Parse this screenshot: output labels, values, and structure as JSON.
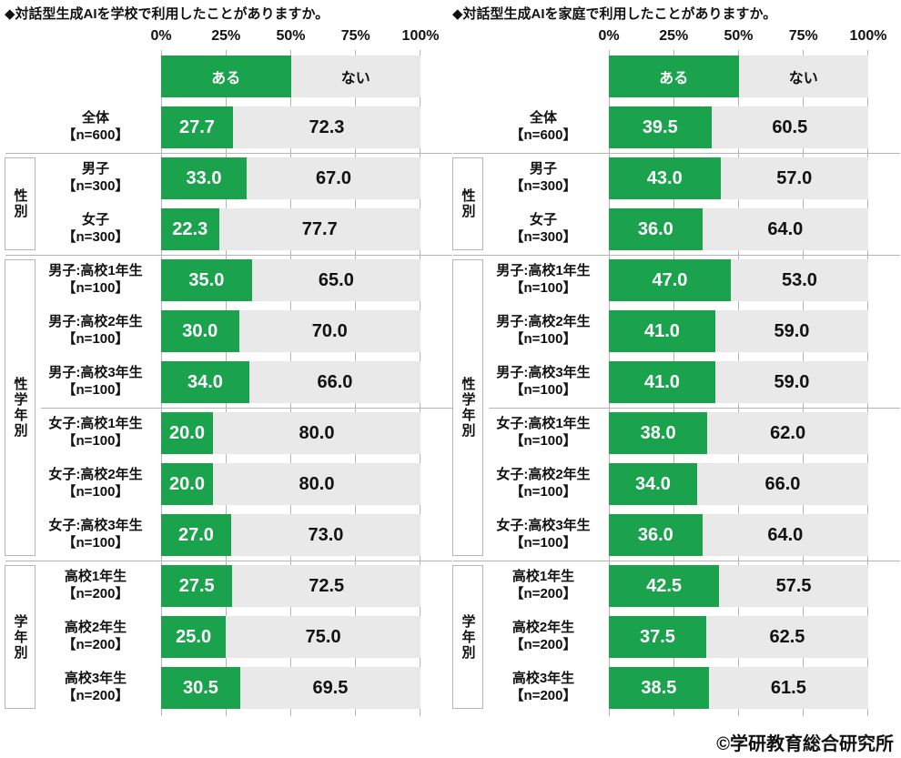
{
  "colors": {
    "green": "#1aa24d",
    "gray": "#e9e9e9",
    "line": "#b5b5b5"
  },
  "footer": {
    "credit": "©学研教育総合研究所"
  },
  "charts": [
    {
      "title": "◆対話型生成AIを学校で利用したことがありますか。",
      "axis": [
        "0%",
        "25%",
        "50%",
        "75%",
        "100%"
      ],
      "legend": {
        "yes": "ある",
        "no": "ない"
      },
      "groups": {
        "sex": "性別",
        "sex_grade": "性学年別",
        "grade": "学年別"
      },
      "rows": [
        {
          "label": "全体",
          "n": "【n=600】",
          "yes": "27.7",
          "no": "72.3"
        },
        {
          "label": "男子",
          "n": "【n=300】",
          "yes": "33.0",
          "no": "67.0"
        },
        {
          "label": "女子",
          "n": "【n=300】",
          "yes": "22.3",
          "no": "77.7"
        },
        {
          "label": "男子:高校1年生",
          "n": "【n=100】",
          "yes": "35.0",
          "no": "65.0"
        },
        {
          "label": "男子:高校2年生",
          "n": "【n=100】",
          "yes": "30.0",
          "no": "70.0"
        },
        {
          "label": "男子:高校3年生",
          "n": "【n=100】",
          "yes": "34.0",
          "no": "66.0"
        },
        {
          "label": "女子:高校1年生",
          "n": "【n=100】",
          "yes": "20.0",
          "no": "80.0"
        },
        {
          "label": "女子:高校2年生",
          "n": "【n=100】",
          "yes": "20.0",
          "no": "80.0"
        },
        {
          "label": "女子:高校3年生",
          "n": "【n=100】",
          "yes": "27.0",
          "no": "73.0"
        },
        {
          "label": "高校1年生",
          "n": "【n=200】",
          "yes": "27.5",
          "no": "72.5"
        },
        {
          "label": "高校2年生",
          "n": "【n=200】",
          "yes": "25.0",
          "no": "75.0"
        },
        {
          "label": "高校3年生",
          "n": "【n=200】",
          "yes": "30.5",
          "no": "69.5"
        }
      ]
    },
    {
      "title": "◆対話型生成AIを家庭で利用したことがありますか。",
      "axis": [
        "0%",
        "25%",
        "50%",
        "75%",
        "100%"
      ],
      "legend": {
        "yes": "ある",
        "no": "ない"
      },
      "groups": {
        "sex": "性別",
        "sex_grade": "性学年別",
        "grade": "学年別"
      },
      "rows": [
        {
          "label": "全体",
          "n": "【n=600】",
          "yes": "39.5",
          "no": "60.5"
        },
        {
          "label": "男子",
          "n": "【n=300】",
          "yes": "43.0",
          "no": "57.0"
        },
        {
          "label": "女子",
          "n": "【n=300】",
          "yes": "36.0",
          "no": "64.0"
        },
        {
          "label": "男子:高校1年生",
          "n": "【n=100】",
          "yes": "47.0",
          "no": "53.0"
        },
        {
          "label": "男子:高校2年生",
          "n": "【n=100】",
          "yes": "41.0",
          "no": "59.0"
        },
        {
          "label": "男子:高校3年生",
          "n": "【n=100】",
          "yes": "41.0",
          "no": "59.0"
        },
        {
          "label": "女子:高校1年生",
          "n": "【n=100】",
          "yes": "38.0",
          "no": "62.0"
        },
        {
          "label": "女子:高校2年生",
          "n": "【n=100】",
          "yes": "34.0",
          "no": "66.0"
        },
        {
          "label": "女子:高校3年生",
          "n": "【n=100】",
          "yes": "36.0",
          "no": "64.0"
        },
        {
          "label": "高校1年生",
          "n": "【n=200】",
          "yes": "42.5",
          "no": "57.5"
        },
        {
          "label": "高校2年生",
          "n": "【n=200】",
          "yes": "37.5",
          "no": "62.5"
        },
        {
          "label": "高校3年生",
          "n": "【n=200】",
          "yes": "38.5",
          "no": "61.5"
        }
      ]
    }
  ],
  "chart_data": [
    {
      "type": "bar",
      "orientation": "horizontal",
      "stacked": true,
      "title": "対話型生成AIを学校で利用したことがありますか。",
      "categories": [
        "全体【n=600】",
        "男子【n=300】",
        "女子【n=300】",
        "男子:高校1年生【n=100】",
        "男子:高校2年生【n=100】",
        "男子:高校3年生【n=100】",
        "女子:高校1年生【n=100】",
        "女子:高校2年生【n=100】",
        "女子:高校3年生【n=100】",
        "高校1年生【n=200】",
        "高校2年生【n=200】",
        "高校3年生【n=200】"
      ],
      "category_groups": [
        {
          "label": "性別",
          "rows": [
            1,
            2
          ]
        },
        {
          "label": "性学年別",
          "rows": [
            3,
            4,
            5,
            6,
            7,
            8
          ]
        },
        {
          "label": "学年別",
          "rows": [
            9,
            10,
            11
          ]
        }
      ],
      "series": [
        {
          "name": "ある",
          "color": "#1aa24d",
          "values": [
            27.7,
            33.0,
            22.3,
            35.0,
            30.0,
            34.0,
            20.0,
            20.0,
            27.0,
            27.5,
            25.0,
            30.5
          ]
        },
        {
          "name": "ない",
          "color": "#e9e9e9",
          "values": [
            72.3,
            67.0,
            77.7,
            65.0,
            70.0,
            66.0,
            80.0,
            80.0,
            73.0,
            72.5,
            75.0,
            69.5
          ]
        }
      ],
      "xlim": [
        0,
        100
      ],
      "x_ticks": [
        "0%",
        "25%",
        "50%",
        "75%",
        "100%"
      ],
      "legend_position": "top",
      "grid": "tick-marks-between-rows"
    },
    {
      "type": "bar",
      "orientation": "horizontal",
      "stacked": true,
      "title": "対話型生成AIを家庭で利用したことがありますか。",
      "categories": [
        "全体【n=600】",
        "男子【n=300】",
        "女子【n=300】",
        "男子:高校1年生【n=100】",
        "男子:高校2年生【n=100】",
        "男子:高校3年生【n=100】",
        "女子:高校1年生【n=100】",
        "女子:高校2年生【n=100】",
        "女子:高校3年生【n=100】",
        "高校1年生【n=200】",
        "高校2年生【n=200】",
        "高校3年生【n=200】"
      ],
      "category_groups": [
        {
          "label": "性別",
          "rows": [
            1,
            2
          ]
        },
        {
          "label": "性学年別",
          "rows": [
            3,
            4,
            5,
            6,
            7,
            8
          ]
        },
        {
          "label": "学年別",
          "rows": [
            9,
            10,
            11
          ]
        }
      ],
      "series": [
        {
          "name": "ある",
          "color": "#1aa24d",
          "values": [
            39.5,
            43.0,
            36.0,
            47.0,
            41.0,
            41.0,
            38.0,
            34.0,
            36.0,
            42.5,
            37.5,
            38.5
          ]
        },
        {
          "name": "ない",
          "color": "#e9e9e9",
          "values": [
            60.5,
            57.0,
            64.0,
            53.0,
            59.0,
            59.0,
            62.0,
            66.0,
            64.0,
            57.5,
            62.5,
            61.5
          ]
        }
      ],
      "xlim": [
        0,
        100
      ],
      "x_ticks": [
        "0%",
        "25%",
        "50%",
        "75%",
        "100%"
      ],
      "legend_position": "top",
      "grid": "tick-marks-between-rows"
    }
  ]
}
